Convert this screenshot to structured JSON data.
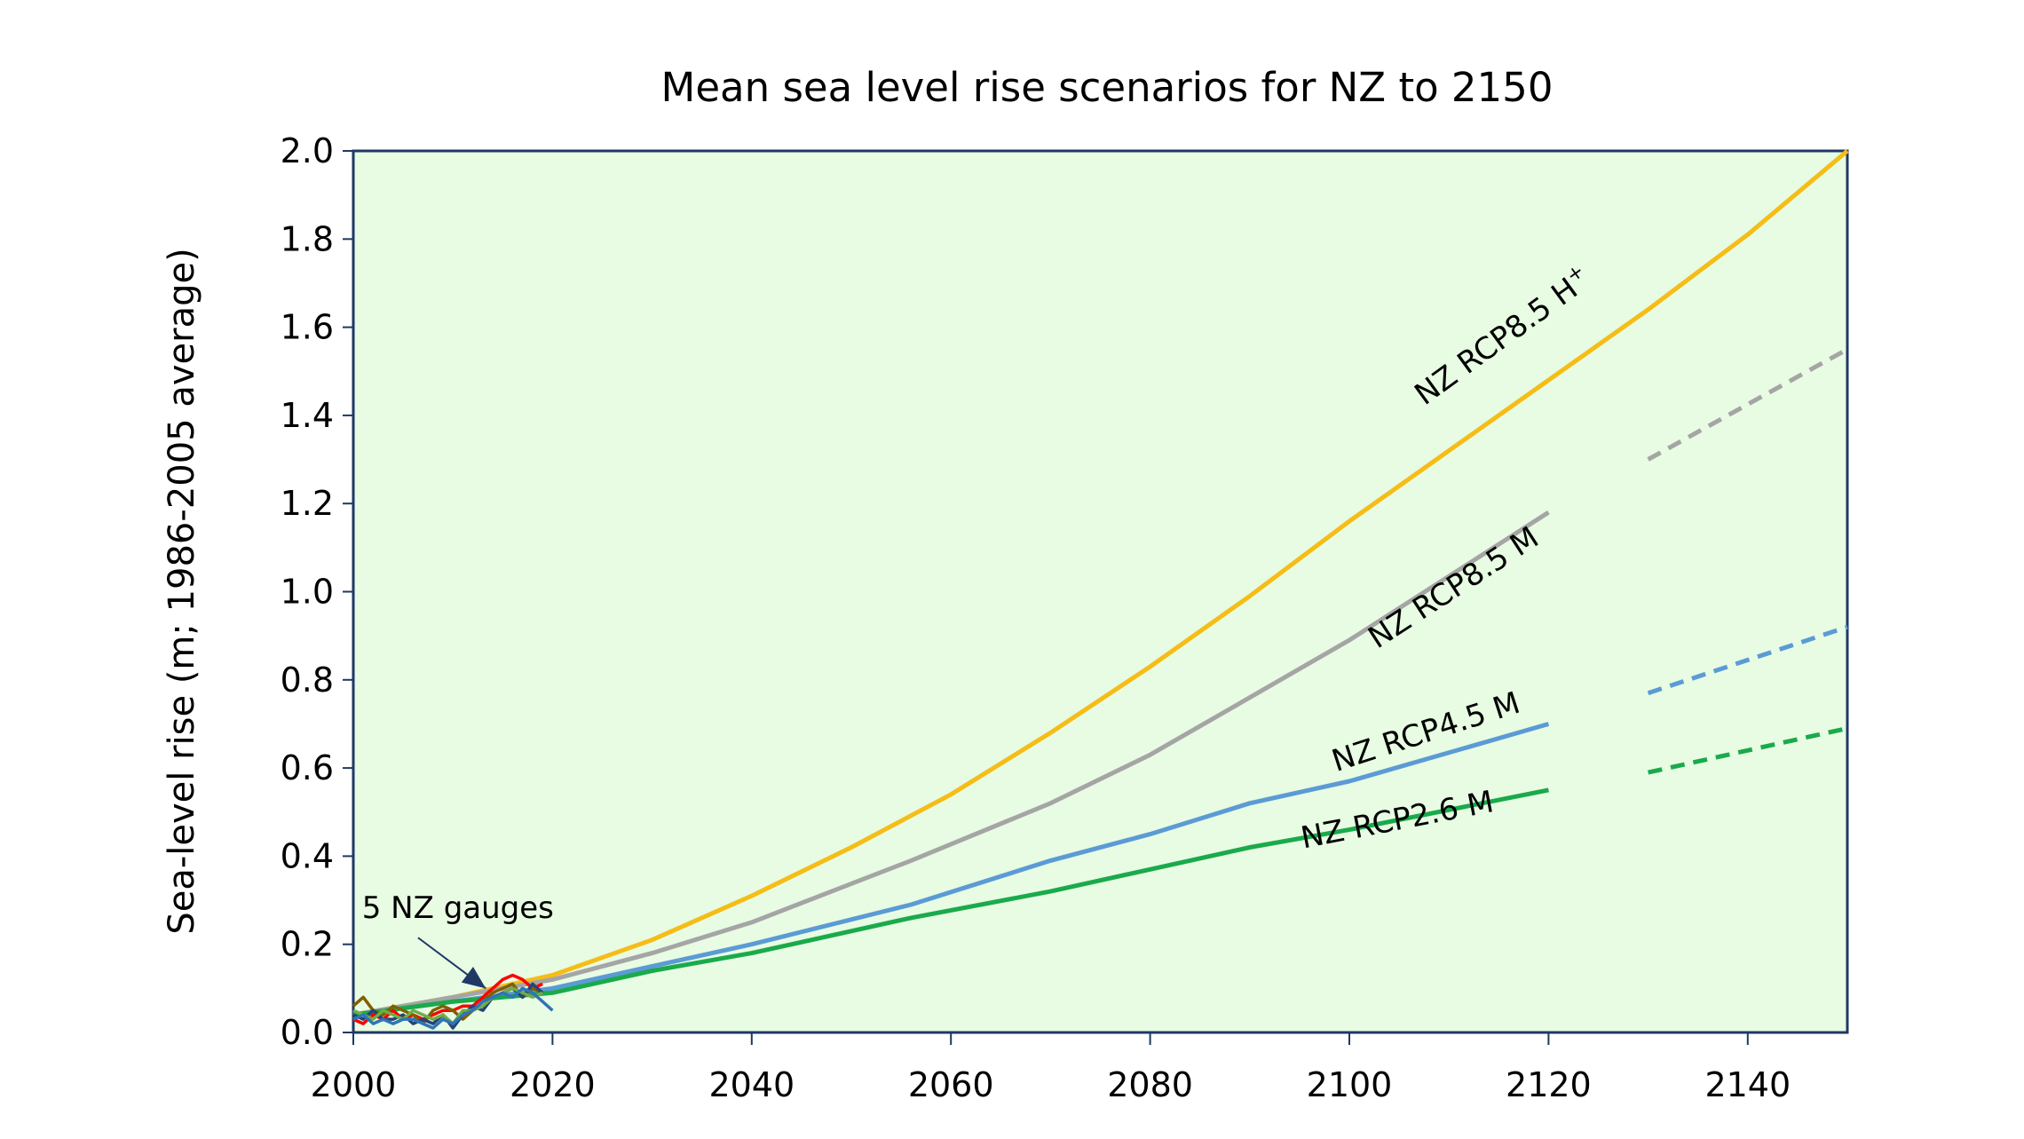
{
  "chart_data": {
    "type": "line",
    "title": "Mean sea level rise scenarios for NZ to 2150",
    "xlabel": "",
    "ylabel": "Sea-level rise (m; 1986-2005 average)",
    "xlim": [
      2000,
      2150
    ],
    "ylim": [
      0,
      2.0
    ],
    "x_ticks": [
      "2000",
      "2020",
      "2040",
      "2060",
      "2080",
      "2100",
      "2120",
      "2140"
    ],
    "y_ticks": [
      "0.0",
      "0.2",
      "0.4",
      "0.6",
      "0.8",
      "1.0",
      "1.2",
      "1.4",
      "1.6",
      "1.8",
      "2.0"
    ],
    "plot_background": "#e8fbe3",
    "grid": false,
    "series": [
      {
        "name": "NZ RCP8.5 H+",
        "color": "#f5bd16",
        "x": [
          2000,
          2010,
          2020,
          2030,
          2040,
          2050,
          2060,
          2070,
          2080,
          2090,
          2100,
          2110,
          2120,
          2130,
          2140,
          2150
        ],
        "y": [
          0.04,
          0.08,
          0.13,
          0.21,
          0.31,
          0.42,
          0.54,
          0.68,
          0.83,
          0.99,
          1.16,
          1.32,
          1.48,
          1.64,
          1.81,
          2.0
        ]
      },
      {
        "name": "NZ RCP8.5 M",
        "color": "#a5a5a5",
        "x": [
          2000,
          2010,
          2020,
          2030,
          2040,
          2056,
          2070,
          2080,
          2090,
          2100,
          2120
        ],
        "y": [
          0.04,
          0.08,
          0.12,
          0.18,
          0.25,
          0.39,
          0.52,
          0.63,
          0.76,
          0.89,
          1.18
        ]
      },
      {
        "name": "NZ RCP4.5 M",
        "color": "#5b9bd5",
        "x": [
          2000,
          2010,
          2020,
          2030,
          2040,
          2056,
          2070,
          2080,
          2090,
          2100,
          2120
        ],
        "y": [
          0.04,
          0.07,
          0.1,
          0.15,
          0.2,
          0.29,
          0.39,
          0.45,
          0.52,
          0.57,
          0.7
        ]
      },
      {
        "name": "NZ RCP2.6 M",
        "color": "#1aaa4b",
        "x": [
          2000,
          2010,
          2020,
          2030,
          2040,
          2056,
          2070,
          2080,
          2090,
          2100,
          2120
        ],
        "y": [
          0.04,
          0.07,
          0.09,
          0.14,
          0.18,
          0.26,
          0.32,
          0.37,
          0.42,
          0.46,
          0.55
        ]
      },
      {
        "color": "#a5a5a5",
        "dashed": true,
        "x": [
          2130,
          2150
        ],
        "y": [
          1.3,
          1.55
        ]
      },
      {
        "color": "#5b9bd5",
        "dashed": true,
        "x": [
          2130,
          2150
        ],
        "y": [
          0.77,
          0.92
        ]
      },
      {
        "color": "#1aaa4b",
        "dashed": true,
        "x": [
          2130,
          2150
        ],
        "y": [
          0.59,
          0.69
        ]
      }
    ],
    "gauge_series": [
      {
        "color": "#ff0000",
        "x": [
          2000,
          2001,
          2002,
          2003,
          2004,
          2005,
          2006,
          2007,
          2008,
          2009,
          2010,
          2011,
          2012,
          2013,
          2014,
          2015,
          2016,
          2017,
          2018,
          2019
        ],
        "y": [
          0.03,
          0.02,
          0.04,
          0.03,
          0.05,
          0.03,
          0.04,
          0.03,
          0.04,
          0.05,
          0.05,
          0.06,
          0.06,
          0.08,
          0.1,
          0.12,
          0.13,
          0.12,
          0.1,
          0.11
        ]
      },
      {
        "color": "#7f6000",
        "x": [
          2000,
          2001,
          2002,
          2003,
          2004,
          2005,
          2006,
          2007,
          2008,
          2009,
          2010,
          2011,
          2012,
          2013,
          2014,
          2015,
          2016,
          2017,
          2018,
          2019
        ],
        "y": [
          0.06,
          0.08,
          0.05,
          0.04,
          0.06,
          0.05,
          0.04,
          0.02,
          0.05,
          0.06,
          0.05,
          0.03,
          0.05,
          0.07,
          0.09,
          0.1,
          0.11,
          0.08,
          0.1,
          0.09
        ]
      },
      {
        "color": "#264478",
        "x": [
          2000,
          2001,
          2002,
          2003,
          2004,
          2005,
          2006,
          2007,
          2008,
          2009,
          2010,
          2011,
          2012,
          2013,
          2014,
          2015,
          2016,
          2017,
          2018,
          2019
        ],
        "y": [
          0.04,
          0.03,
          0.05,
          0.03,
          0.03,
          0.04,
          0.02,
          0.03,
          0.02,
          0.04,
          0.01,
          0.04,
          0.06,
          0.05,
          0.08,
          0.09,
          0.1,
          0.08,
          0.11,
          0.09
        ]
      },
      {
        "color": "#70ad47",
        "x": [
          2000,
          2001,
          2002,
          2003,
          2004,
          2005,
          2006,
          2007,
          2008,
          2009,
          2010,
          2011,
          2012,
          2013,
          2014,
          2015,
          2016,
          2017,
          2018,
          2019
        ],
        "y": [
          0.05,
          0.04,
          0.03,
          0.05,
          0.04,
          0.03,
          0.05,
          0.04,
          0.03,
          0.04,
          0.02,
          0.05,
          0.05,
          0.06,
          0.08,
          0.09,
          0.1,
          0.09,
          0.08,
          0.09
        ]
      },
      {
        "color": "#2e75b6",
        "x": [
          2000,
          2001,
          2002,
          2003,
          2004,
          2005,
          2006,
          2007,
          2008,
          2009,
          2010,
          2011,
          2012,
          2013,
          2014,
          2015,
          2016,
          2017,
          2018,
          2019,
          2020
        ],
        "y": [
          0.03,
          0.04,
          0.02,
          0.03,
          0.02,
          0.03,
          0.03,
          0.02,
          0.01,
          0.03,
          0.02,
          0.04,
          0.05,
          0.07,
          0.08,
          0.09,
          0.08,
          0.1,
          0.09,
          0.07,
          0.05
        ]
      }
    ],
    "annotations": [
      {
        "text": "NZ RCP8.5 H",
        "superscript": "+",
        "anchor_x": 2116,
        "anchor_y": 1.56,
        "rotation_deg": -36
      },
      {
        "text": "NZ RCP8.5 M",
        "anchor_x": 2111,
        "anchor_y": 0.99,
        "rotation_deg": -33
      },
      {
        "text": "NZ RCP4.5 M",
        "anchor_x": 2108,
        "anchor_y": 0.66,
        "rotation_deg": -18
      },
      {
        "text": "NZ RCP2.6 M",
        "anchor_x": 2105,
        "anchor_y": 0.46,
        "rotation_deg": -11
      },
      {
        "text": "5 NZ gauges",
        "anchor_x": 2010.5,
        "anchor_y": 0.26,
        "rotation_deg": 0
      }
    ],
    "gauge_arrow": {
      "from_x": 2006.5,
      "from_y": 0.215,
      "to_x": 2013.3,
      "to_y": 0.1
    }
  }
}
